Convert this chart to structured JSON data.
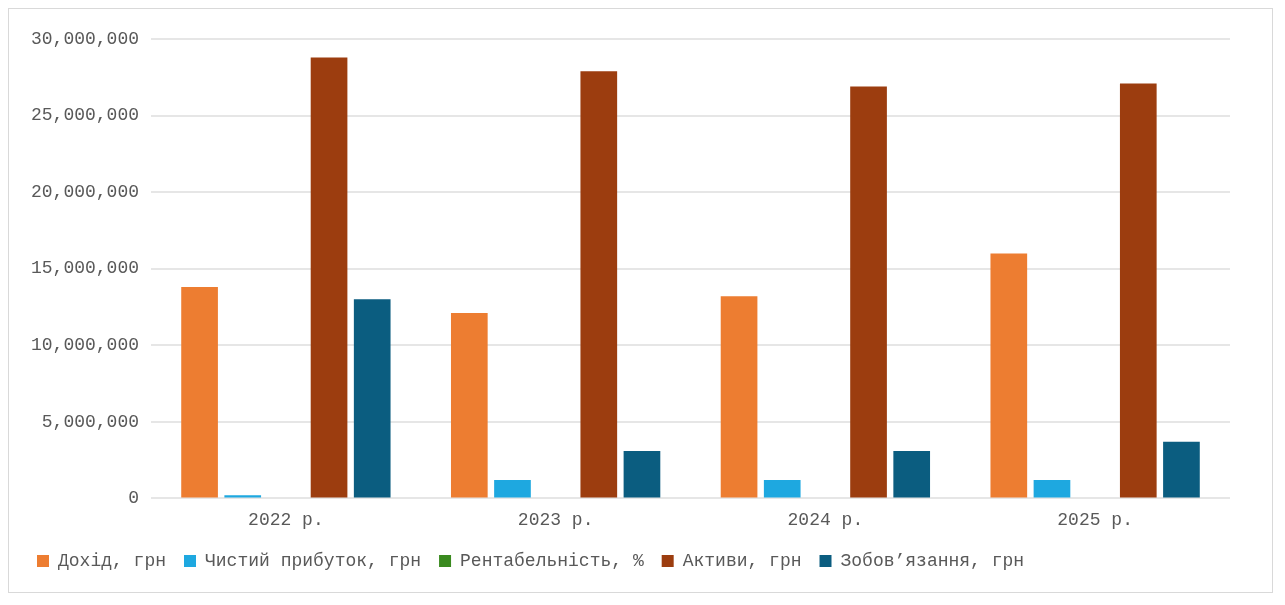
{
  "chart_data": {
    "type": "bar",
    "categories": [
      "2022 р.",
      "2023 р.",
      "2024 р.",
      "2025 р."
    ],
    "series": [
      {
        "name": "Дохід, грн",
        "color": "#ed7d31",
        "values": [
          13800000,
          12100000,
          13200000,
          16000000
        ]
      },
      {
        "name": "Чистий прибуток, грн",
        "color": "#1ea8e0",
        "values": [
          200000,
          1200000,
          1200000,
          1200000
        ]
      },
      {
        "name": "Рентабельність, %",
        "color": "#3a8a1f",
        "values": [
          0,
          0,
          0,
          0
        ]
      },
      {
        "name": "Активи, грн",
        "color": "#9c3d0f",
        "values": [
          28800000,
          27900000,
          26900000,
          27100000
        ]
      },
      {
        "name": "Зобов’язання, грн",
        "color": "#0b5d80",
        "values": [
          13000000,
          3100000,
          3100000,
          3700000
        ]
      }
    ],
    "ylim": [
      0,
      30000000
    ],
    "yticks": [
      {
        "value": 0,
        "label": "0"
      },
      {
        "value": 5000000,
        "label": "5,000,000"
      },
      {
        "value": 10000000,
        "label": "10,000,000"
      },
      {
        "value": 15000000,
        "label": "15,000,000"
      },
      {
        "value": 20000000,
        "label": "20,000,000"
      },
      {
        "value": 25000000,
        "label": "25,000,000"
      },
      {
        "value": 30000000,
        "label": "30,000,000"
      }
    ],
    "grid": "y",
    "legend": "bottom"
  }
}
